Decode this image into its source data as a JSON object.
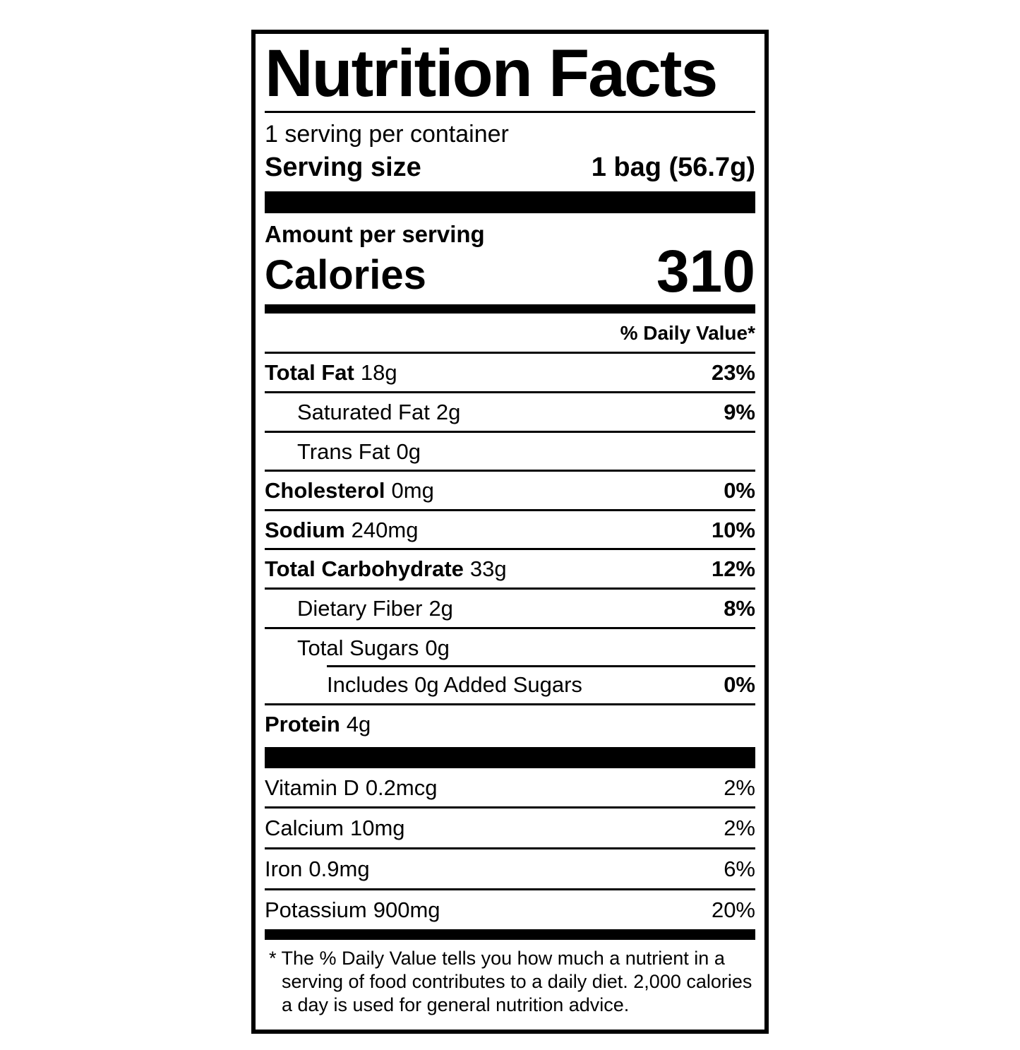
{
  "label": {
    "title": "Nutrition Facts",
    "servings_per_container": "1 serving per container",
    "serving_size_label": "Serving size",
    "serving_size_value": "1 bag (56.7g)",
    "amount_per_serving": "Amount per serving",
    "calories_label": "Calories",
    "calories_value": "310",
    "daily_value_header": "% Daily Value*",
    "nutrients": [
      {
        "name": "Total Fat",
        "amount": "18g",
        "dv": "23%"
      },
      {
        "name": "Saturated Fat",
        "amount": "2g",
        "dv": "9%"
      },
      {
        "name": "Trans Fat",
        "amount": "0g",
        "dv": ""
      },
      {
        "name": "Cholesterol",
        "amount": "0mg",
        "dv": "0%"
      },
      {
        "name": "Sodium",
        "amount": "240mg",
        "dv": "10%"
      },
      {
        "name": "Total Carbohydrate",
        "amount": "33g",
        "dv": "12%"
      },
      {
        "name": "Dietary Fiber",
        "amount": "2g",
        "dv": "8%"
      },
      {
        "name": "Total Sugars",
        "amount": "0g",
        "dv": ""
      },
      {
        "name": "Includes 0g Added Sugars",
        "amount": "",
        "dv": "0%"
      },
      {
        "name": "Protein",
        "amount": "4g",
        "dv": ""
      }
    ],
    "vitamins": [
      {
        "name": "Vitamin D",
        "amount": "0.2mcg",
        "dv": "2%"
      },
      {
        "name": "Calcium",
        "amount": "10mg",
        "dv": "2%"
      },
      {
        "name": "Iron",
        "amount": "0.9mg",
        "dv": "6%"
      },
      {
        "name": "Potassium",
        "amount": "900mg",
        "dv": "20%"
      }
    ],
    "footnote_lines": [
      "* The % Daily Value tells you how much a nutrient in a",
      "serving of food contributes to a daily diet. 2,000 calories",
      "a day is used for general nutrition advice."
    ],
    "colors": {
      "ink": "#000000",
      "background": "#ffffff"
    }
  }
}
